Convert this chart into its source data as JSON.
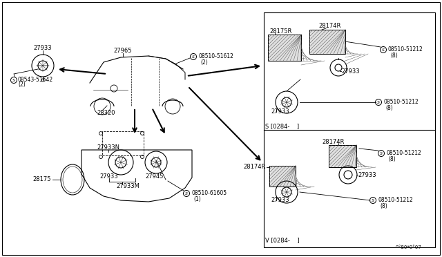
{
  "bg_color": "#ffffff",
  "line_color": "#000000",
  "text_color": "#000000",
  "fig_width": 6.4,
  "fig_height": 3.72,
  "dpi": 100,
  "bottom_text": "^°80*0°07",
  "right_top_label": "S [0284-    ]",
  "right_bot_label": "V [0284-    ]"
}
